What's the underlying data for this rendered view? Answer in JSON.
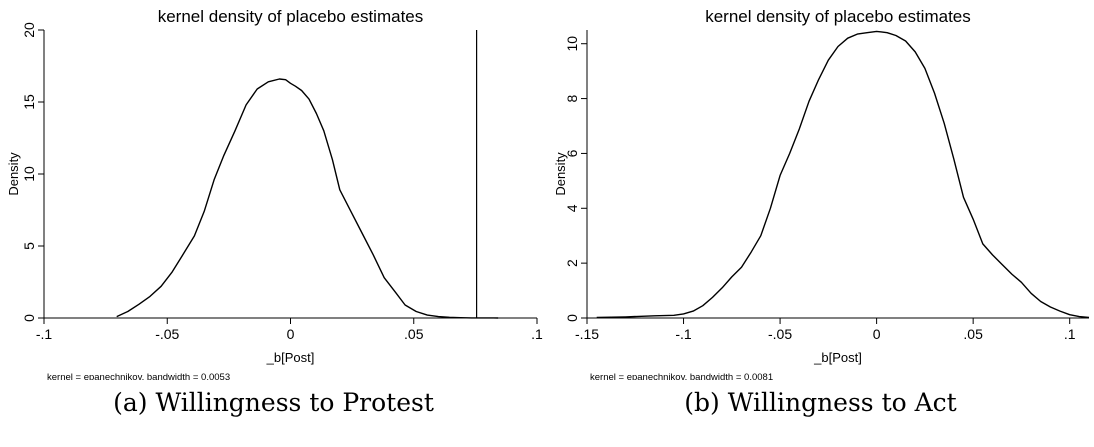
{
  "chart_data": [
    {
      "type": "line",
      "title": "kernel density of placebo estimates",
      "xlabel": "_b[Post]",
      "ylabel": "Density",
      "note": "kernel = epanechnikov, bandwidth = 0.0053",
      "caption_label": "(a)",
      "caption_text": "Willingness to Protest",
      "xlim": [
        -0.1,
        0.1
      ],
      "ylim": [
        0,
        20
      ],
      "x_ticks": [
        -0.1,
        -0.05,
        0,
        0.05,
        0.1
      ],
      "x_tick_labels": [
        "-.1",
        "-.05",
        "0",
        ".05",
        ".1"
      ],
      "y_ticks": [
        0,
        5,
        10,
        15,
        20
      ],
      "y_tick_labels": [
        "0",
        "5",
        "10",
        "15",
        "20"
      ],
      "vline_x": 0.0755,
      "series": [
        {
          "x": [
            -0.0705,
            -0.066,
            -0.0615,
            -0.057,
            -0.0525,
            -0.048,
            -0.044,
            -0.039,
            -0.035,
            -0.031,
            -0.027,
            -0.0225,
            -0.018,
            -0.0135,
            -0.009,
            -0.0045,
            -0.002,
            0.0,
            0.002,
            0.0045,
            0.0075,
            0.0105,
            0.0135,
            0.017,
            0.02,
            0.0245,
            0.029,
            0.0335,
            0.038,
            0.0425,
            0.0465,
            0.051,
            0.0555,
            0.06,
            0.0645,
            0.069,
            0.0735,
            0.078,
            0.0825,
            0.0842
          ],
          "y": [
            0.1,
            0.45,
            0.95,
            1.5,
            2.2,
            3.2,
            4.3,
            5.7,
            7.4,
            9.6,
            11.3,
            13.0,
            14.8,
            15.9,
            16.4,
            16.6,
            16.55,
            16.3,
            16.1,
            15.8,
            15.2,
            14.2,
            13.0,
            11.0,
            8.9,
            7.4,
            5.9,
            4.4,
            2.8,
            1.8,
            0.9,
            0.45,
            0.2,
            0.1,
            0.05,
            0.02,
            0.01,
            0.01,
            0.01,
            0.0
          ]
        }
      ]
    },
    {
      "type": "line",
      "title": "kernel density of placebo estimates",
      "xlabel": "_b[Post]",
      "ylabel": "Density",
      "note": "kernel = epanechnikov, bandwidth = 0.0081",
      "caption_label": "(b)",
      "caption_text": "Willingness to Act",
      "xlim": [
        -0.15,
        0.11
      ],
      "ylim": [
        0,
        10.5
      ],
      "x_ticks": [
        -0.15,
        -0.1,
        -0.05,
        0,
        0.05,
        0.1
      ],
      "x_tick_labels": [
        "-.15",
        "-.1",
        "-.05",
        "0",
        ".05",
        ".1"
      ],
      "y_ticks": [
        0,
        2,
        4,
        6,
        8,
        10
      ],
      "y_tick_labels": [
        "0",
        "2",
        "4",
        "6",
        "8",
        "10"
      ],
      "series": [
        {
          "x": [
            -0.145,
            -0.13,
            -0.115,
            -0.105,
            -0.1,
            -0.095,
            -0.09,
            -0.085,
            -0.08,
            -0.075,
            -0.07,
            -0.065,
            -0.06,
            -0.055,
            -0.05,
            -0.045,
            -0.04,
            -0.035,
            -0.03,
            -0.025,
            -0.02,
            -0.015,
            -0.01,
            -0.005,
            0.0,
            0.0025,
            0.0055,
            0.01,
            0.015,
            0.02,
            0.025,
            0.03,
            0.035,
            0.04,
            0.045,
            0.05,
            0.055,
            0.06,
            0.065,
            0.07,
            0.075,
            0.08,
            0.085,
            0.09,
            0.095,
            0.1,
            0.105,
            0.11
          ],
          "y": [
            0.02,
            0.04,
            0.08,
            0.1,
            0.15,
            0.25,
            0.45,
            0.75,
            1.1,
            1.5,
            1.85,
            2.4,
            3.0,
            4.0,
            5.2,
            6.0,
            6.9,
            7.9,
            8.7,
            9.4,
            9.9,
            10.2,
            10.35,
            10.4,
            10.45,
            10.43,
            10.4,
            10.3,
            10.1,
            9.7,
            9.1,
            8.2,
            7.1,
            5.8,
            4.4,
            3.6,
            2.7,
            2.3,
            1.95,
            1.6,
            1.3,
            0.9,
            0.6,
            0.4,
            0.25,
            0.12,
            0.05,
            0.02
          ]
        }
      ]
    }
  ]
}
